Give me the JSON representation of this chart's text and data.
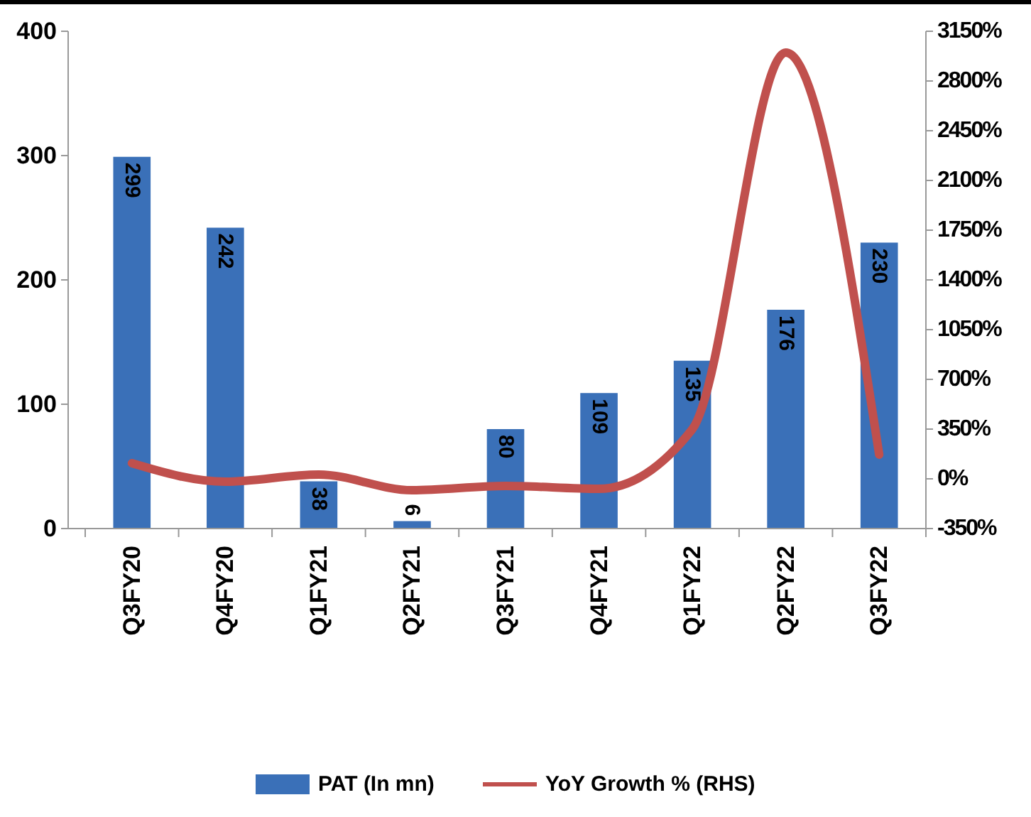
{
  "chart_data": {
    "type": "bar",
    "categories": [
      "Q3FY20",
      "Q4FY20",
      "Q1FY21",
      "Q2FY21",
      "Q3FY21",
      "Q4FY21",
      "Q1FY22",
      "Q2FY22",
      "Q3FY22"
    ],
    "series": [
      {
        "name": "PAT (In mn)",
        "color": "#3a70b8",
        "values": [
          299,
          242,
          38,
          6,
          80,
          109,
          135,
          176,
          230
        ],
        "value_labels": [
          "299",
          "242",
          "38",
          "6",
          "80",
          "109",
          "135",
          "176",
          "230"
        ]
      },
      {
        "name": "YoY Growth % (RHS)",
        "type": "line",
        "axis": "y2",
        "color": "#c0504d",
        "values": [
          110,
          -20,
          30,
          -80,
          -50,
          -70,
          350,
          3000,
          170
        ]
      }
    ],
    "ylim": [
      0,
      400
    ],
    "yticks": [
      0,
      100,
      200,
      300,
      400
    ],
    "y2lim": [
      -350,
      3150
    ],
    "y2ticks": [
      {
        "value": -350,
        "label": "-350%"
      },
      {
        "value": 0,
        "label": "0%"
      },
      {
        "value": 350,
        "label": "350%"
      },
      {
        "value": 700,
        "label": "700%"
      },
      {
        "value": 1050,
        "label": "1050%"
      },
      {
        "value": 1400,
        "label": "1400%"
      },
      {
        "value": 1750,
        "label": "1750%"
      },
      {
        "value": 2100,
        "label": "2100%"
      },
      {
        "value": 2450,
        "label": "2450%"
      },
      {
        "value": 2800,
        "label": "2800%"
      },
      {
        "value": 3150,
        "label": "3150%"
      }
    ],
    "legend": "bottom",
    "grid": false,
    "marker": "none"
  }
}
